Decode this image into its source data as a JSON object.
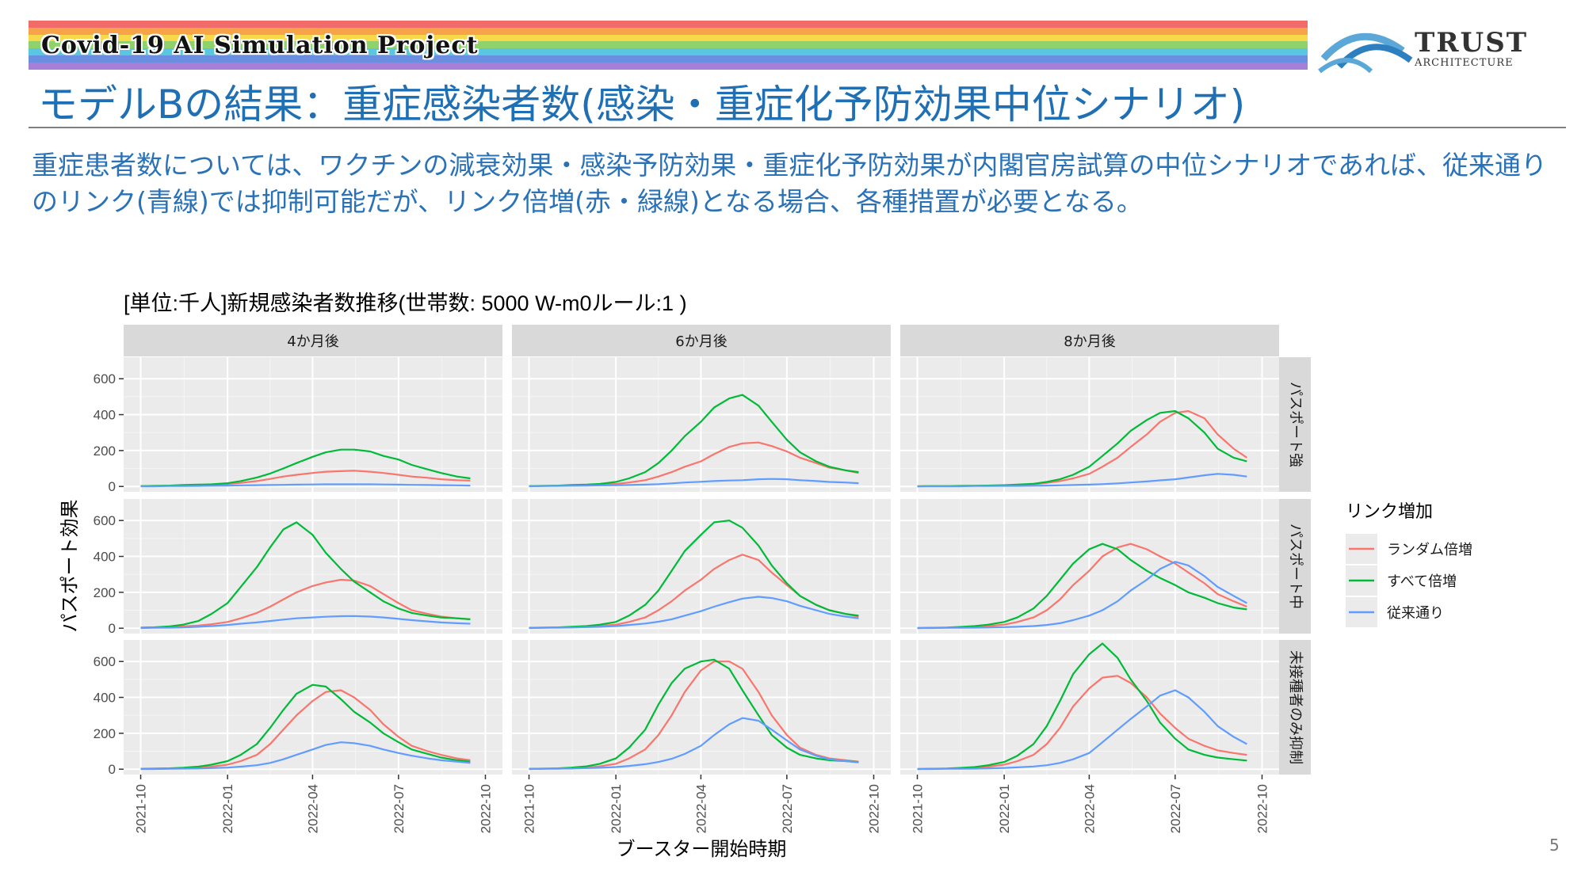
{
  "header": {
    "project_title": "Covid-19 AI Simulation Project",
    "logo_name": "TRUST",
    "logo_sub": "ARCHITECTURE",
    "logo_icon": "bridge-arch-icon",
    "slide_title": "モデルBの結果：重症感染者数(感染・重症化予防効果中位シナリオ)",
    "body": "重症患者数については、ワクチンの減衰効果・感染予防効果・重症化予防効果が内閣官房試算の中位シナリオであれば、従来通りのリンク(青線)では抑制可能だが、リンク倍増(赤・緑線)となる場合、各種措置が必要となる。",
    "page_number": "5",
    "rainbow_colors": [
      "#f26b6b",
      "#f7a34a",
      "#f7d84a",
      "#8fd16a",
      "#5bc6e0",
      "#6a8fe0",
      "#a57fd8"
    ]
  },
  "chart_data": {
    "type": "line",
    "title": "[単位:千人]新規感染者数推移(世帯数: 5000 W-m0ルール:1 )",
    "xlabel": "ブースター開始時期",
    "ylabel": "パスポート効果",
    "x_ticks": [
      "2021-10",
      "2022-01",
      "2022-04",
      "2022-07",
      "2022-10"
    ],
    "x_range": [
      "2021-10",
      "2022-10"
    ],
    "y_ticks": [
      0,
      200,
      400,
      600
    ],
    "ylim": [
      0,
      720
    ],
    "col_facets": [
      "4か月後",
      "6か月後",
      "8か月後"
    ],
    "row_facets": [
      "パスポート強",
      "パスポート中",
      "未接種者のみ抑制"
    ],
    "legend": {
      "title": "リンク増加",
      "position": "right",
      "entries": [
        {
          "name": "ランダム倍増",
          "color": "#f8766d"
        },
        {
          "name": "すべて倍増",
          "color": "#00ba38"
        },
        {
          "name": "従来通り",
          "color": "#619cff"
        }
      ]
    },
    "grid": true,
    "x": [
      "2021-10-01",
      "2021-10-15",
      "2021-11-01",
      "2021-11-15",
      "2021-12-01",
      "2021-12-15",
      "2022-01-01",
      "2022-01-15",
      "2022-02-01",
      "2022-02-15",
      "2022-03-01",
      "2022-03-15",
      "2022-04-01",
      "2022-04-15",
      "2022-05-01",
      "2022-05-15",
      "2022-06-01",
      "2022-06-15",
      "2022-07-01",
      "2022-07-15",
      "2022-08-01",
      "2022-08-15",
      "2022-09-01",
      "2022-09-15"
    ],
    "panels": [
      {
        "row": 0,
        "col": 0,
        "series": [
          {
            "name": "ランダム倍増",
            "values": [
              2,
              3,
              4,
              6,
              8,
              10,
              14,
              20,
              30,
              42,
              55,
              65,
              75,
              82,
              85,
              88,
              82,
              75,
              65,
              55,
              48,
              40,
              35,
              32
            ]
          },
          {
            "name": "すべて倍増",
            "values": [
              2,
              3,
              5,
              8,
              10,
              12,
              18,
              30,
              50,
              72,
              100,
              130,
              165,
              190,
              205,
              205,
              195,
              170,
              150,
              120,
              95,
              75,
              55,
              45
            ]
          },
          {
            "name": "従来通り",
            "values": [
              1,
              1,
              2,
              2,
              3,
              4,
              5,
              6,
              7,
              8,
              9,
              10,
              11,
              12,
              12,
              12,
              12,
              11,
              10,
              9,
              8,
              7,
              6,
              5
            ]
          }
        ]
      },
      {
        "row": 0,
        "col": 1,
        "series": [
          {
            "name": "ランダム倍増",
            "values": [
              2,
              3,
              4,
              6,
              8,
              10,
              14,
              22,
              35,
              55,
              80,
              110,
              140,
              180,
              220,
              240,
              245,
              225,
              195,
              160,
              130,
              105,
              90,
              75
            ]
          },
          {
            "name": "すべて倍増",
            "values": [
              2,
              3,
              5,
              8,
              10,
              14,
              25,
              45,
              80,
              130,
              200,
              280,
              360,
              440,
              490,
              510,
              450,
              360,
              260,
              190,
              140,
              110,
              90,
              80
            ]
          },
          {
            "name": "従来通り",
            "values": [
              1,
              2,
              3,
              4,
              5,
              6,
              7,
              8,
              10,
              13,
              17,
              22,
              26,
              30,
              33,
              35,
              40,
              42,
              40,
              35,
              30,
              25,
              22,
              18
            ]
          }
        ]
      },
      {
        "row": 0,
        "col": 2,
        "series": [
          {
            "name": "ランダム倍増",
            "values": [
              1,
              2,
              2,
              3,
              4,
              5,
              6,
              8,
              12,
              20,
              30,
              45,
              70,
              110,
              160,
              220,
              290,
              360,
              410,
              420,
              380,
              290,
              210,
              160
            ]
          },
          {
            "name": "すべて倍増",
            "values": [
              1,
              2,
              2,
              3,
              4,
              5,
              7,
              10,
              15,
              25,
              40,
              65,
              110,
              170,
              240,
              310,
              370,
              410,
              420,
              380,
              300,
              210,
              160,
              140
            ]
          },
          {
            "name": "従来通り",
            "values": [
              0,
              1,
              1,
              1,
              2,
              2,
              3,
              3,
              4,
              5,
              6,
              8,
              10,
              13,
              17,
              22,
              28,
              34,
              40,
              50,
              62,
              70,
              65,
              55
            ]
          }
        ]
      },
      {
        "row": 1,
        "col": 0,
        "series": [
          {
            "name": "ランダム倍増",
            "values": [
              2,
              4,
              6,
              10,
              15,
              22,
              35,
              55,
              85,
              120,
              160,
              200,
              235,
              255,
              270,
              265,
              235,
              190,
              140,
              100,
              80,
              65,
              55,
              50
            ]
          },
          {
            "name": "すべて倍増",
            "values": [
              3,
              5,
              10,
              20,
              40,
              80,
              140,
              230,
              340,
              450,
              550,
              590,
              520,
              420,
              330,
              260,
              200,
              150,
              110,
              85,
              70,
              60,
              55,
              50
            ]
          },
          {
            "name": "従来通り",
            "values": [
              1,
              2,
              3,
              5,
              8,
              12,
              18,
              25,
              32,
              40,
              48,
              55,
              60,
              64,
              67,
              68,
              65,
              60,
              52,
              45,
              38,
              32,
              28,
              25
            ]
          }
        ]
      },
      {
        "row": 1,
        "col": 1,
        "series": [
          {
            "name": "ランダム倍増",
            "values": [
              2,
              3,
              4,
              6,
              9,
              13,
              20,
              35,
              60,
              100,
              150,
              210,
              270,
              330,
              380,
              410,
              380,
              310,
              240,
              180,
              130,
              100,
              80,
              65
            ]
          },
          {
            "name": "すべて倍増",
            "values": [
              2,
              3,
              5,
              8,
              12,
              20,
              35,
              70,
              130,
              210,
              320,
              430,
              520,
              590,
              600,
              560,
              460,
              350,
              250,
              180,
              130,
              100,
              80,
              70
            ]
          },
          {
            "name": "従来通り",
            "values": [
              1,
              2,
              3,
              4,
              6,
              8,
              12,
              18,
              26,
              36,
              50,
              70,
              95,
              120,
              145,
              165,
              175,
              168,
              150,
              125,
              100,
              80,
              65,
              55
            ]
          }
        ]
      },
      {
        "row": 1,
        "col": 2,
        "series": [
          {
            "name": "ランダム倍増",
            "values": [
              1,
              2,
              3,
              5,
              8,
              12,
              20,
              35,
              60,
              100,
              160,
              240,
              320,
              400,
              450,
              470,
              440,
              400,
              360,
              310,
              250,
              190,
              150,
              120
            ]
          },
          {
            "name": "すべて倍増",
            "values": [
              1,
              2,
              4,
              7,
              12,
              20,
              35,
              60,
              110,
              180,
              270,
              360,
              440,
              470,
              440,
              380,
              320,
              280,
              240,
              200,
              170,
              140,
              115,
              105
            ]
          },
          {
            "name": "従来通り",
            "values": [
              1,
              1,
              2,
              2,
              3,
              4,
              6,
              8,
              12,
              18,
              28,
              45,
              70,
              100,
              150,
              210,
              270,
              330,
              370,
              350,
              290,
              230,
              180,
              140
            ]
          }
        ]
      },
      {
        "row": 2,
        "col": 0,
        "series": [
          {
            "name": "ランダム倍増",
            "values": [
              1,
              2,
              3,
              5,
              8,
              14,
              25,
              45,
              80,
              140,
              220,
              300,
              380,
              430,
              440,
              400,
              330,
              250,
              180,
              130,
              100,
              80,
              60,
              50
            ]
          },
          {
            "name": "すべて倍増",
            "values": [
              2,
              3,
              5,
              8,
              14,
              25,
              45,
              80,
              140,
              230,
              330,
              420,
              470,
              460,
              390,
              320,
              260,
              200,
              150,
              110,
              85,
              65,
              50,
              42
            ]
          },
          {
            "name": "従来通り",
            "values": [
              1,
              1,
              2,
              3,
              4,
              6,
              9,
              14,
              22,
              35,
              55,
              80,
              110,
              135,
              150,
              145,
              130,
              110,
              90,
              75,
              60,
              50,
              42,
              35
            ]
          }
        ]
      },
      {
        "row": 2,
        "col": 1,
        "series": [
          {
            "name": "ランダム倍増",
            "values": [
              1,
              2,
              3,
              5,
              9,
              16,
              30,
              60,
              110,
              190,
              300,
              430,
              550,
              600,
              600,
              560,
              430,
              300,
              190,
              120,
              80,
              60,
              50,
              42
            ]
          },
          {
            "name": "すべて倍増",
            "values": [
              2,
              3,
              5,
              9,
              16,
              30,
              60,
              120,
              220,
              360,
              480,
              560,
              600,
              610,
              560,
              440,
              300,
              190,
              120,
              80,
              60,
              50,
              45,
              40
            ]
          },
          {
            "name": "従来通り",
            "values": [
              1,
              2,
              3,
              4,
              6,
              8,
              12,
              18,
              28,
              40,
              58,
              85,
              130,
              190,
              250,
              285,
              270,
              220,
              160,
              110,
              75,
              55,
              45,
              38
            ]
          }
        ]
      },
      {
        "row": 2,
        "col": 2,
        "series": [
          {
            "name": "ランダム倍増",
            "values": [
              1,
              2,
              3,
              5,
              8,
              14,
              25,
              45,
              80,
              140,
              230,
              350,
              450,
              510,
              520,
              480,
              400,
              310,
              230,
              170,
              130,
              105,
              90,
              80
            ]
          },
          {
            "name": "すべて倍増",
            "values": [
              1,
              2,
              4,
              7,
              12,
              22,
              40,
              75,
              140,
              240,
              380,
              530,
              640,
              700,
              620,
              500,
              380,
              260,
              170,
              110,
              80,
              65,
              55,
              48
            ]
          },
          {
            "name": "従来通り",
            "values": [
              1,
              1,
              2,
              2,
              3,
              5,
              7,
              10,
              15,
              22,
              35,
              55,
              90,
              150,
              220,
              280,
              350,
              410,
              440,
              400,
              320,
              240,
              180,
              140
            ]
          }
        ]
      }
    ]
  }
}
